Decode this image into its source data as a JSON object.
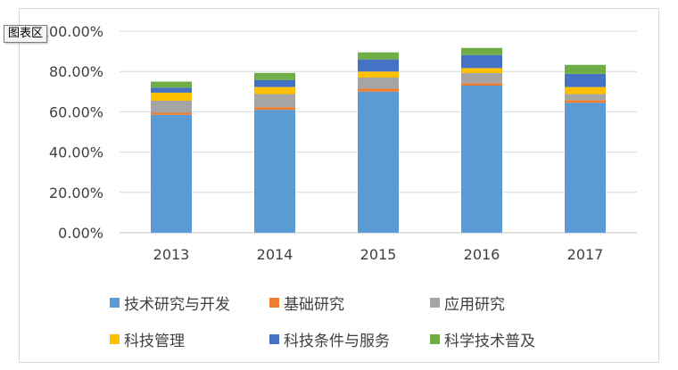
{
  "tooltip": "图表区",
  "chart_data": {
    "type": "bar",
    "stacked": true,
    "categories": [
      "2013",
      "2014",
      "2015",
      "2016",
      "2017"
    ],
    "ylim": [
      0,
      100
    ],
    "yticks": [
      "0.00%",
      "20.00%",
      "40.00%",
      "60.00%",
      "80.00%",
      "100.00%"
    ],
    "grid": true,
    "legend_position": "bottom",
    "series": [
      {
        "name": "技术研究与开发",
        "color": "#5b9bd5",
        "values": [
          58.5,
          61.0,
          70.0,
          73.0,
          64.5
        ]
      },
      {
        "name": "基础研究",
        "color": "#ed7d31",
        "values": [
          1.0,
          1.3,
          1.5,
          1.2,
          1.3
        ]
      },
      {
        "name": "应用研究",
        "color": "#a5a5a5",
        "values": [
          6.0,
          6.5,
          5.5,
          5.0,
          3.0
        ]
      },
      {
        "name": "科技管理",
        "color": "#ffc000",
        "values": [
          4.0,
          3.5,
          3.0,
          2.5,
          3.5
        ]
      },
      {
        "name": "科技条件与服务",
        "color": "#4472c4",
        "values": [
          2.5,
          3.5,
          6.0,
          6.5,
          6.5
        ]
      },
      {
        "name": "科学技术普及",
        "color": "#70ad47",
        "values": [
          3.0,
          3.5,
          3.5,
          3.5,
          4.5
        ]
      }
    ]
  }
}
